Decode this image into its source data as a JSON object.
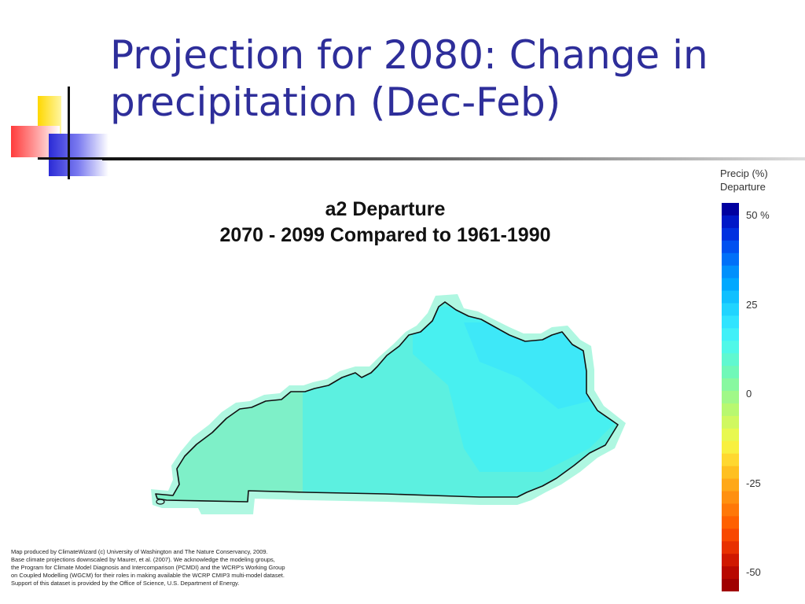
{
  "slide": {
    "title_line1": "Projection for 2080: Change in",
    "title_line2": "precipitation (Dec-Feb)"
  },
  "map": {
    "title_line1": "a2 Departure",
    "title_line2": "2070 - 2099 Compared to 1961-1990",
    "region_fill_colors": [
      "#7ef0c8",
      "#5cf0e0",
      "#48f0f0",
      "#3ee8f8"
    ],
    "outline_color": "#111111"
  },
  "legend": {
    "title_line1": "Precip (%)",
    "title_line2": "Departure",
    "ticks": [
      {
        "label": "50  %",
        "value": 50
      },
      {
        "label": "25",
        "value": 25
      },
      {
        "label": "0",
        "value": 0
      },
      {
        "label": "-25",
        "value": -25
      },
      {
        "label": "-50",
        "value": -50
      }
    ],
    "colors": [
      "#0000a0",
      "#0018c8",
      "#0030e0",
      "#0050f0",
      "#0070f8",
      "#0090fc",
      "#00a8ff",
      "#10c0ff",
      "#20d4ff",
      "#30e4ff",
      "#40f0f8",
      "#50f8e8",
      "#60f8d0",
      "#70f8b8",
      "#88f8a0",
      "#a0f888",
      "#b8f870",
      "#d0f860",
      "#e8f850",
      "#f8f040",
      "#ffd830",
      "#ffc020",
      "#ffa818",
      "#ff9010",
      "#ff7808",
      "#ff6000",
      "#f84800",
      "#e83000",
      "#d01800",
      "#b80800",
      "#a00000"
    ]
  },
  "credit": {
    "line1": "Map produced by ClimateWizard (c) University of Washington and The Nature Conservancy, 2009.",
    "line2": "Base climate projections downscaled by Maurer, et al. (2007). We acknowledge the modeling groups,",
    "line3": "the Program for Climate Model Diagnosis and Intercomparison (PCMDI) and the WCRP's Working Group",
    "line4": "on Coupled Modelling (WGCM) for their roles in making available the WCRP CMIP3 multi-model dataset.",
    "line5": "Support of this dataset is provided by the Office of Science, U.S. Department of Energy."
  }
}
